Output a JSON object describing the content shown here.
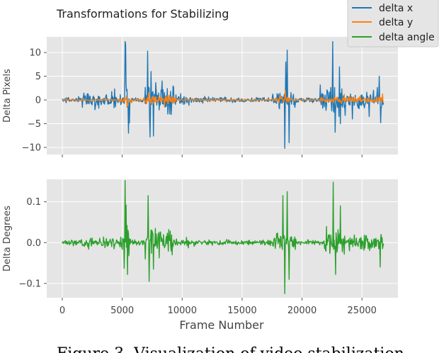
{
  "caption": "Figure 3. Visualization of video stabilization",
  "chart_data": {
    "type": "line",
    "title": "Transformations for Stabilizing",
    "xlabel": "Frame Number",
    "xlim": [
      -1300,
      28000
    ],
    "xticks": [
      0,
      5000,
      10000,
      15000,
      20000,
      25000
    ],
    "frames": 26800,
    "legend": {
      "placement": "top-right",
      "entries": [
        {
          "name": "delta x",
          "color": "#1f77b4"
        },
        {
          "name": "delta y",
          "color": "#ff7f0e"
        },
        {
          "name": "delta angle",
          "color": "#2ca02c"
        }
      ]
    },
    "grid": true,
    "background": "#e5e5e5",
    "panels": [
      {
        "ylabel": "Delta Pixels",
        "ylim": [
          -11.5,
          13.3
        ],
        "yticks": [
          -10,
          -5,
          0,
          5,
          10
        ],
        "series": [
          {
            "name": "delta x",
            "color": "#1f77b4",
            "baseline_noise": 0.5,
            "activity": [
              [
                1600,
                4500,
                1.8
              ],
              [
                4700,
                5100,
                2.2
              ],
              [
                5100,
                5600,
                4.5
              ],
              [
                6900,
                9300,
                3.2
              ],
              [
                9300,
                10800,
                1.1
              ],
              [
                17500,
                19500,
                1.8
              ],
              [
                21500,
                23700,
                2.8
              ],
              [
                23700,
                26800,
                1.8
              ]
            ],
            "spikes": [
              [
                5220,
                12.3
              ],
              [
                5270,
                11.7
              ],
              [
                5500,
                -7
              ],
              [
                7100,
                10.3
              ],
              [
                7300,
                -7.8
              ],
              [
                7600,
                -7.6
              ],
              [
                7400,
                6
              ],
              [
                8300,
                4
              ],
              [
                18550,
                -10.2
              ],
              [
                18750,
                10.5
              ],
              [
                18900,
                -9
              ],
              [
                18650,
                8
              ],
              [
                22550,
                12.3
              ],
              [
                22750,
                -6.8
              ],
              [
                23100,
                7
              ],
              [
                23200,
                -5
              ],
              [
                24200,
                -4
              ],
              [
                25600,
                -3.5
              ],
              [
                26550,
                -4.8
              ],
              [
                26450,
                5
              ]
            ]
          },
          {
            "name": "delta y",
            "color": "#ff7f0e",
            "baseline_noise": 0.15,
            "activity": [
              [
                4800,
                5800,
                0.7
              ],
              [
                6800,
                9500,
                0.8
              ],
              [
                17800,
                19200,
                0.7
              ],
              [
                21500,
                26800,
                0.6
              ]
            ],
            "spikes": [
              [
                5400,
                -1.5
              ],
              [
                7200,
                1.6
              ],
              [
                18600,
                2
              ],
              [
                23500,
                1.2
              ],
              [
                26700,
                1.3
              ],
              [
                8500,
                -1.3
              ]
            ]
          }
        ]
      },
      {
        "ylabel": "Delta Degrees",
        "ylim": [
          -0.135,
          0.155
        ],
        "yticks": [
          -0.1,
          0.0,
          0.1
        ],
        "ytick_labels": [
          "−0.1",
          "0.0",
          "0.1"
        ],
        "series": [
          {
            "name": "delta angle",
            "color": "#2ca02c",
            "baseline_noise": 0.006,
            "activity": [
              [
                1600,
                4600,
                0.012
              ],
              [
                4800,
                5150,
                0.02
              ],
              [
                5150,
                5700,
                0.045
              ],
              [
                6900,
                9300,
                0.03
              ],
              [
                9300,
                10800,
                0.012
              ],
              [
                17500,
                19500,
                0.02
              ],
              [
                21800,
                24000,
                0.03
              ],
              [
                24000,
                26800,
                0.018
              ]
            ],
            "spikes": [
              [
                5250,
                0.152
              ],
              [
                5300,
                0.092
              ],
              [
                5420,
                -0.078
              ],
              [
                7150,
                0.115
              ],
              [
                7250,
                -0.095
              ],
              [
                7600,
                -0.065
              ],
              [
                18550,
                -0.125
              ],
              [
                18400,
                0.115
              ],
              [
                18750,
                0.125
              ],
              [
                18900,
                -0.09
              ],
              [
                22600,
                0.148
              ],
              [
                22800,
                -0.078
              ],
              [
                23200,
                0.09
              ],
              [
                26500,
                -0.06
              ],
              [
                26600,
                0.02
              ]
            ]
          }
        ]
      }
    ]
  }
}
